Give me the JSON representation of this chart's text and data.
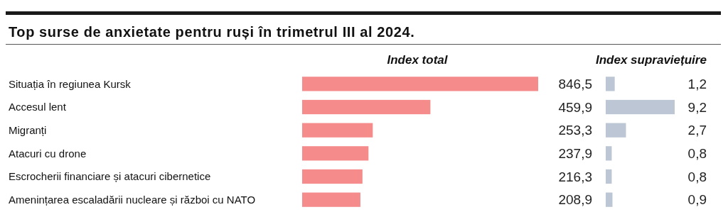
{
  "chart_data": [
    {
      "type": "bar",
      "orientation": "horizontal",
      "title": "Top surse de anxietate pentru ruși în trimetrul III al 2024.",
      "subtitle": "Index total",
      "categories": [
        "Situația în regiunea Kursk",
        "Accesul lent",
        "Migranți",
        "Atacuri cu drone",
        "Escrocherii financiare și atacuri cibernetice",
        "Amenințarea escaladării nucleare și război cu NATO"
      ],
      "values": [
        846.5,
        459.9,
        253.3,
        237.9,
        216.3,
        208.9
      ],
      "value_labels": [
        "846,5",
        "459,9",
        "253,3",
        "237,9",
        "216,3",
        "208,9"
      ],
      "color": "#f58b8b",
      "xlim": [
        0,
        846.5
      ],
      "tick_labels": "y"
    },
    {
      "type": "bar",
      "orientation": "horizontal",
      "title": "Index supraviețuire",
      "categories": [
        null,
        null,
        null,
        null,
        null,
        null
      ],
      "values": [
        1.2,
        9.2,
        2.7,
        0.8,
        0.8,
        0.9
      ],
      "value_labels": [
        "1,2",
        "9,2",
        "2,7",
        "0,8",
        "0,8",
        "0,9"
      ],
      "color": "#bcc6d4",
      "xlim": [
        0,
        9.2
      ],
      "tick_labels": false
    }
  ]
}
